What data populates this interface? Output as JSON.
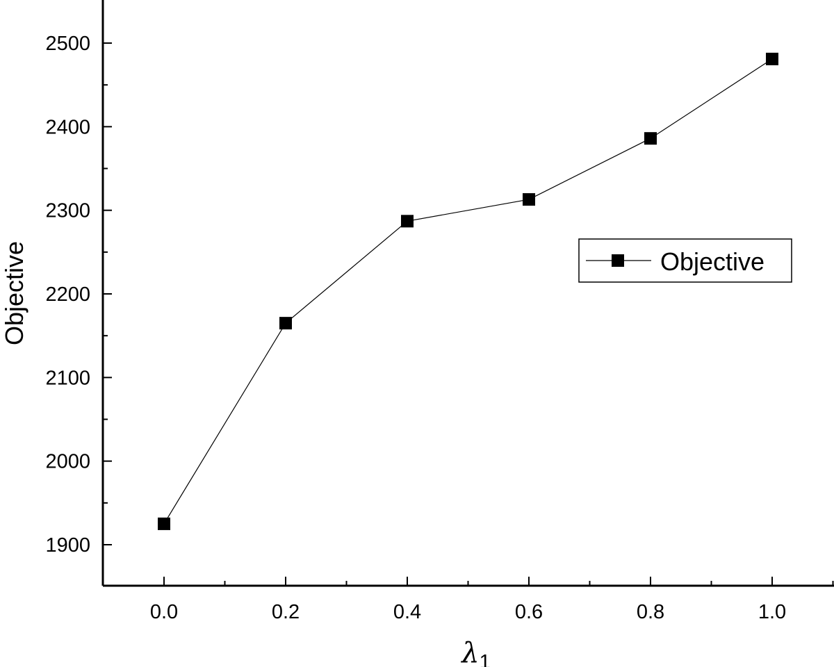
{
  "chart_data": {
    "type": "line",
    "x": [
      0.0,
      0.2,
      0.4,
      0.6,
      0.8,
      1.0
    ],
    "series": [
      {
        "name": "Objective",
        "values": [
          1925,
          2165,
          2287,
          2313,
          2386,
          2481
        ],
        "marker": "square"
      }
    ],
    "x_tick_labels": [
      "0.0",
      "0.2",
      "0.4",
      "0.6",
      "0.8",
      "1.0"
    ],
    "y_tick_labels": [
      "1900",
      "2000",
      "2100",
      "2200",
      "2300",
      "2400",
      "2500"
    ],
    "xlabel": {
      "symbol": "λ",
      "subscript": "1"
    },
    "ylabel": "Objective",
    "xlim": [
      -0.1,
      1.1
    ],
    "ylim": [
      1850,
      2550
    ],
    "grid": false,
    "legend_position": "right",
    "line_color": "#000000"
  }
}
